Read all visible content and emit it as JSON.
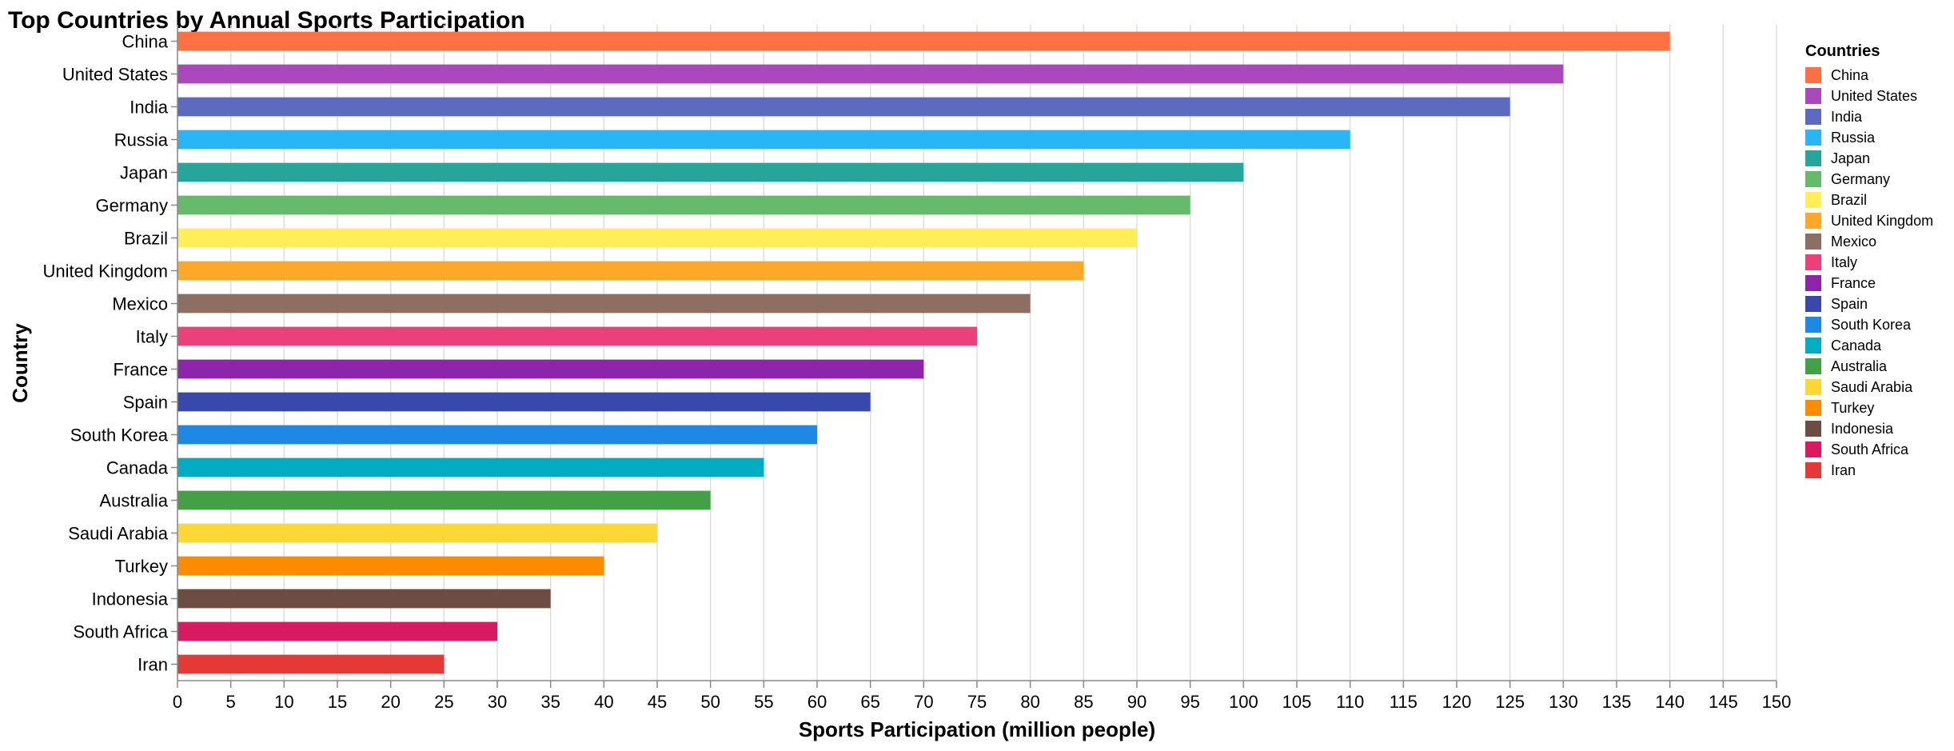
{
  "chart_data": {
    "type": "bar",
    "orientation": "horizontal",
    "title": "Top Countries by Annual Sports Participation",
    "xlabel": "Sports Participation (million people)",
    "ylabel": "Country",
    "xlim": [
      0,
      150
    ],
    "x_ticks": [
      0,
      5,
      10,
      15,
      20,
      25,
      30,
      35,
      40,
      45,
      50,
      55,
      60,
      65,
      70,
      75,
      80,
      85,
      90,
      95,
      100,
      105,
      110,
      115,
      120,
      125,
      130,
      135,
      140,
      145,
      150
    ],
    "grid": true,
    "legend": {
      "title": "Countries",
      "placement": "right"
    },
    "categories": [
      "China",
      "United States",
      "India",
      "Russia",
      "Japan",
      "Germany",
      "Brazil",
      "United Kingdom",
      "Mexico",
      "Italy",
      "France",
      "Spain",
      "South Korea",
      "Canada",
      "Australia",
      "Saudi Arabia",
      "Turkey",
      "Indonesia",
      "South Africa",
      "Iran"
    ],
    "values": [
      140,
      130,
      125,
      110,
      100,
      95,
      90,
      85,
      80,
      75,
      70,
      65,
      60,
      55,
      50,
      45,
      40,
      35,
      30,
      25
    ],
    "colors": [
      "#FF7043",
      "#AB47BC",
      "#5C6BC0",
      "#29B6F6",
      "#26A69A",
      "#66BB6A",
      "#FFEE58",
      "#FFA726",
      "#8D6E63",
      "#EC407A",
      "#8E24AA",
      "#3949AB",
      "#1E88E5",
      "#00ACC1",
      "#43A047",
      "#FDD835",
      "#FB8C00",
      "#6D4C41",
      "#D81B60",
      "#E53935"
    ]
  }
}
